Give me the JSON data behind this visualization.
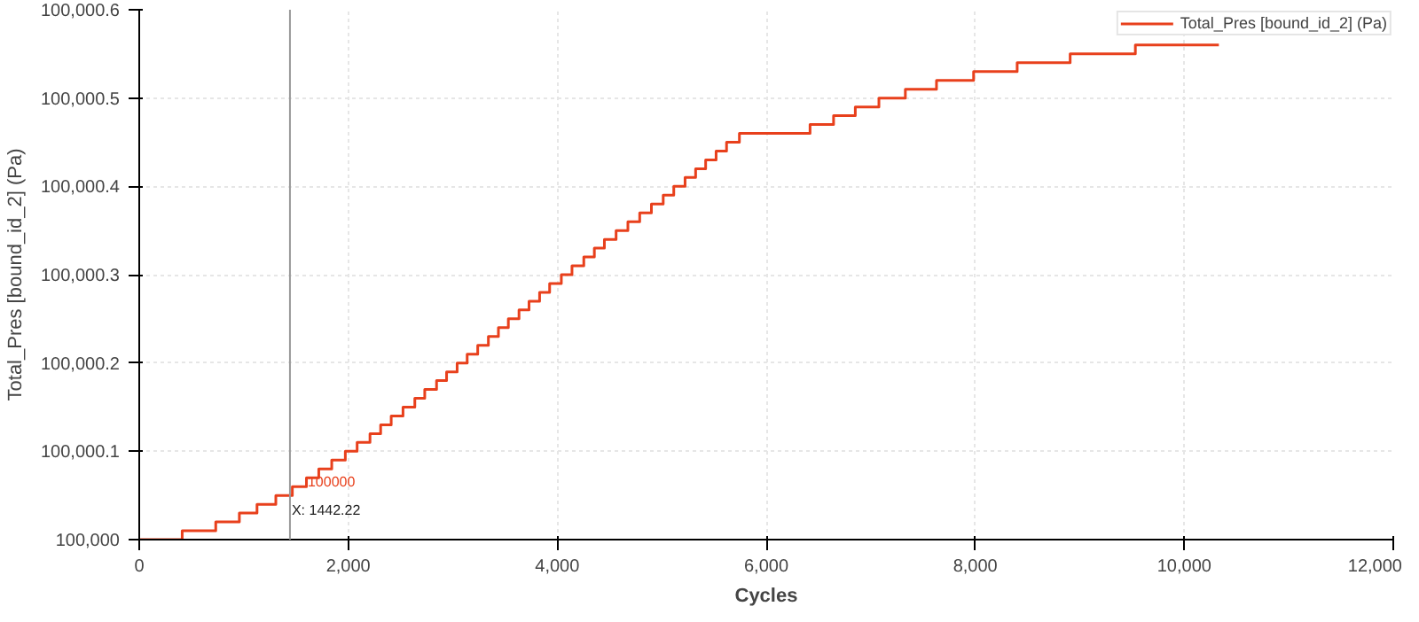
{
  "chart_data": {
    "type": "step",
    "xlabel": "Cycles",
    "ylabel": "Total_Pres [bound_id_2] (Pa)",
    "x": [
      0,
      411,
      732,
      958,
      1127,
      1307,
      1465,
      1600,
      1718,
      1842,
      1972,
      2085,
      2208,
      2310,
      2411,
      2524,
      2637,
      2732,
      2845,
      2941,
      3042,
      3138,
      3239,
      3341,
      3437,
      3532,
      3634,
      3730,
      3831,
      3927,
      4039,
      4141,
      4254,
      4355,
      4451,
      4563,
      4676,
      4789,
      4901,
      5014,
      5115,
      5223,
      5324,
      5420,
      5520,
      5620,
      5743,
      6419,
      6644,
      6852,
      7078,
      7331,
      7629,
      7984,
      8401,
      8908,
      9532,
      10331
    ],
    "series": [
      {
        "name": "Total_Pres [bound_id_2] (Pa)",
        "color": "#e8401c",
        "values": [
          100000.0,
          100000.01,
          100000.02,
          100000.03,
          100000.04,
          100000.05,
          100000.06,
          100000.07,
          100000.08,
          100000.09,
          100000.1,
          100000.11,
          100000.12,
          100000.13,
          100000.14,
          100000.15,
          100000.16,
          100000.17,
          100000.18,
          100000.19,
          100000.2,
          100000.21,
          100000.22,
          100000.23,
          100000.24,
          100000.25,
          100000.26,
          100000.27,
          100000.28,
          100000.29,
          100000.3,
          100000.31,
          100000.32,
          100000.33,
          100000.34,
          100000.35,
          100000.36,
          100000.37,
          100000.38,
          100000.39,
          100000.4,
          100000.41,
          100000.42,
          100000.43,
          100000.44,
          100000.45,
          100000.46,
          100000.47,
          100000.48,
          100000.49,
          100000.5,
          100000.51,
          100000.52,
          100000.53,
          100000.54,
          100000.55,
          100000.56,
          100000.56
        ]
      }
    ],
    "xlim": [
      0,
      12000
    ],
    "ylim": [
      100000,
      100000.6
    ],
    "xticks": [
      0,
      {
        "value": 2000,
        "label": "2,000"
      },
      {
        "value": 4000,
        "label": "4,000"
      },
      {
        "value": 6000,
        "label": "6,000"
      },
      {
        "value": 8000,
        "label": "8,000"
      },
      {
        "value": 10000,
        "label": "10,000"
      },
      {
        "value": 12000,
        "label": "12,000"
      }
    ],
    "yticks": [
      {
        "value": 100000,
        "label": "100,000"
      },
      {
        "value": 100000.1,
        "label": "100,000.1"
      },
      {
        "value": 100000.2,
        "label": "100,000.2"
      },
      {
        "value": 100000.3,
        "label": "100,000.3"
      },
      {
        "value": 100000.4,
        "label": "100,000.4"
      },
      {
        "value": 100000.5,
        "label": "100,000.5"
      },
      {
        "value": 100000.6,
        "label": "100,000.6"
      }
    ],
    "ref_lines": [
      {
        "axis": "x",
        "value": 1442.22,
        "label": "X: 1442.22",
        "color": "#999999"
      }
    ],
    "annotations": [
      "100000"
    ],
    "grid": true,
    "legend": "top right",
    "marker": "none",
    "line_style": "solid"
  }
}
